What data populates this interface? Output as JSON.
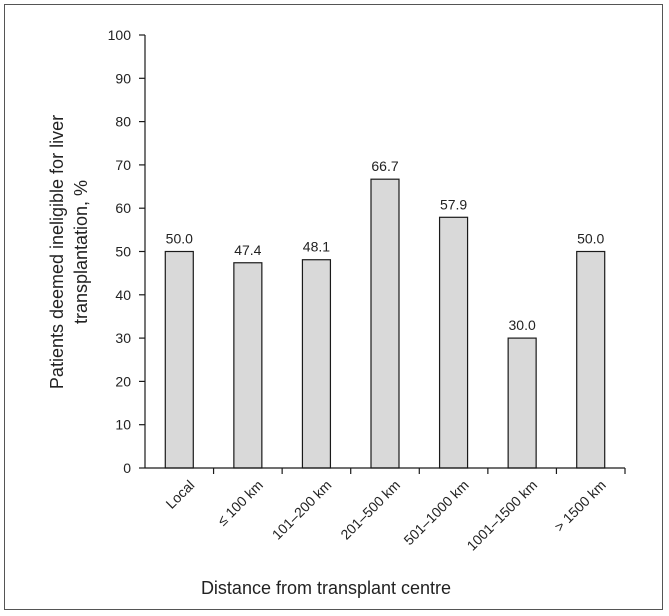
{
  "chart_data": {
    "type": "bar",
    "categories": [
      "Local",
      "≤ 100 km",
      "101–200 km",
      "201–500 km",
      "501–1000 km",
      "1001–1500 km",
      "> 1500 km"
    ],
    "values": [
      50.0,
      47.4,
      48.1,
      66.7,
      57.9,
      30.0,
      50.0
    ],
    "data_labels": [
      "50.0",
      "47.4",
      "48.1",
      "66.7",
      "57.9",
      "30.0",
      "50.0"
    ],
    "xlabel": "Distance from transplant centre",
    "ylabel_line1": "Patients deemed ineligible for liver",
    "ylabel_line2": "transplantation, %",
    "ylim": [
      0,
      100
    ],
    "yticks": [
      "0",
      "10",
      "20",
      "30",
      "40",
      "50",
      "60",
      "70",
      "80",
      "90",
      "100"
    ],
    "grid": false,
    "bar_fill": "#d9d9d9",
    "bar_stroke": "#1a1a1a"
  }
}
